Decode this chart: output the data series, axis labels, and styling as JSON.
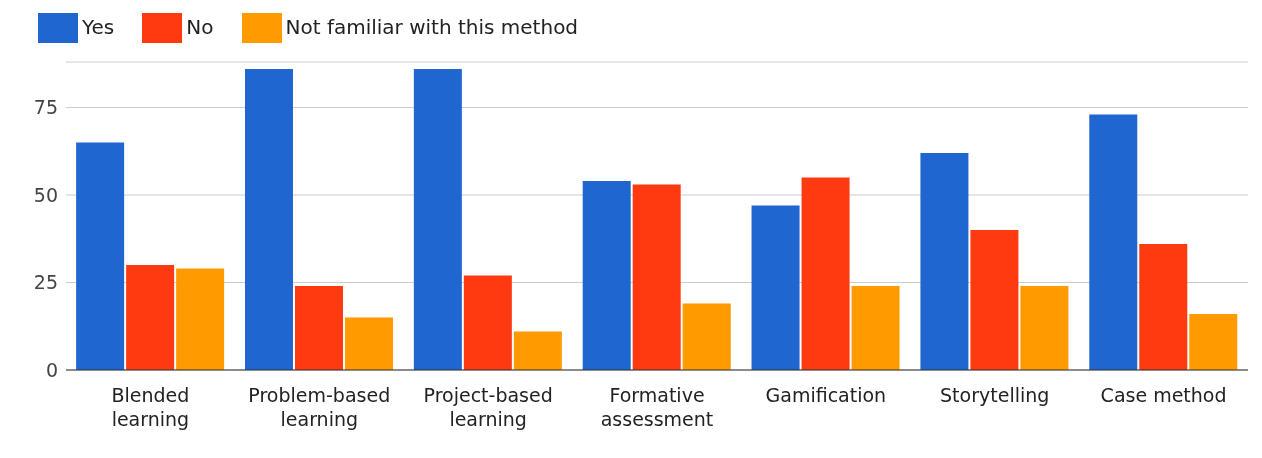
{
  "chart_data": {
    "type": "bar",
    "categories": [
      "Blended learning",
      "Problem-based learning",
      "Project-based learning",
      "Formative assessment",
      "Gamification",
      "Storytelling",
      "Case method"
    ],
    "series": [
      {
        "name": "Yes",
        "color": "#1f66d0",
        "values": [
          65,
          86,
          86,
          54,
          47,
          62,
          73
        ]
      },
      {
        "name": "No",
        "color": "#ff3a10",
        "values": [
          30,
          24,
          27,
          53,
          55,
          40,
          36
        ]
      },
      {
        "name": "Not familiar with this method",
        "color": "#ff9a00",
        "values": [
          29,
          15,
          11,
          19,
          24,
          24,
          16
        ]
      }
    ],
    "ylim": [
      0,
      88
    ],
    "yticks": [
      0,
      25,
      50,
      75
    ],
    "grid": "y",
    "legend": "top left"
  }
}
